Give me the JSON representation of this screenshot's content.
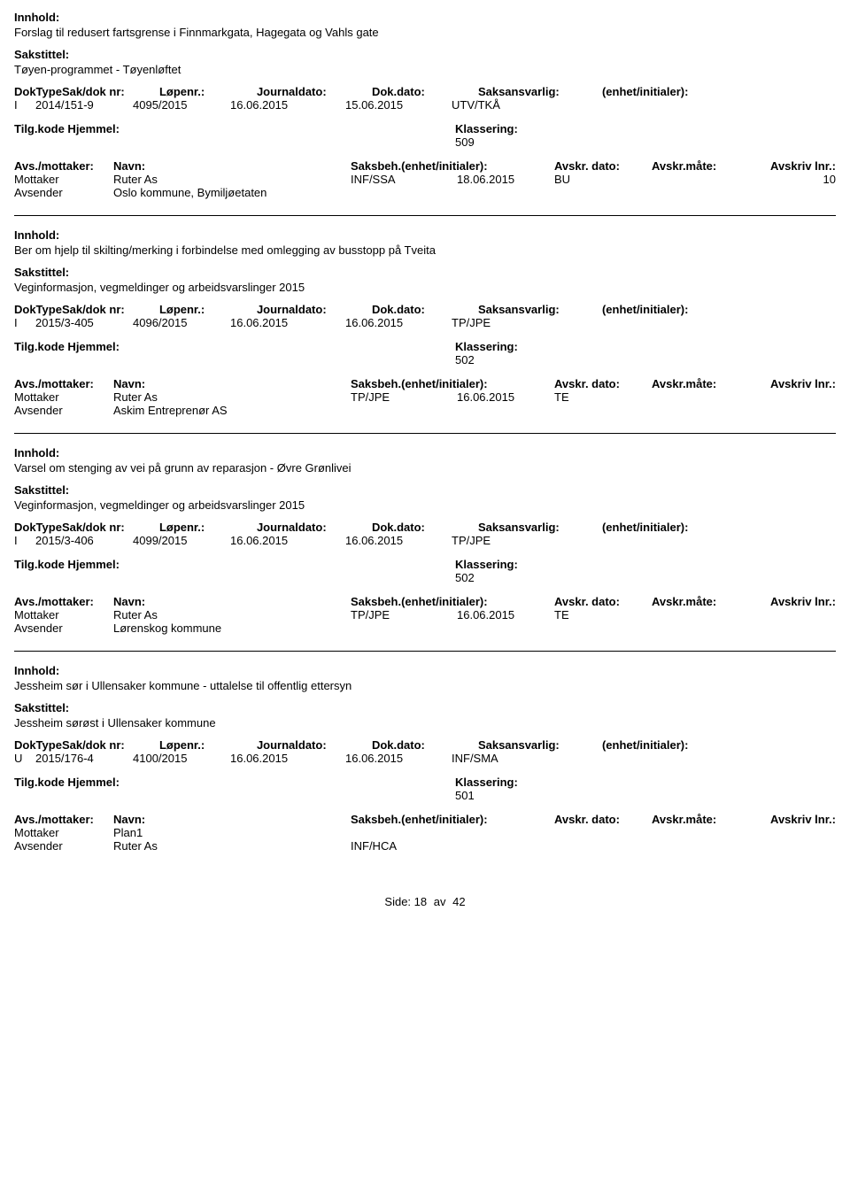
{
  "labels": {
    "innhold": "Innhold:",
    "sakstittel": "Sakstittel:",
    "doktype": "DokType",
    "sakdok": "Sak/dok nr:",
    "lopenr": "Løpenr.:",
    "journaldato": "Journaldato:",
    "dokdato": "Dok.dato:",
    "saksansvarlig": "Saksansvarlig:",
    "enhet_init": "(enhet/initialer):",
    "tilgkode": "Tilg.kode",
    "hjemmel": "Hjemmel:",
    "klassering": "Klassering:",
    "avs_mottaker": "Avs./mottaker:",
    "navn": "Navn:",
    "saksbeh": "Saksbeh.(enhet/initialer):",
    "avskr_dato": "Avskr. dato:",
    "avskr_mote": "Avskr.måte:",
    "avskriv_lnr": "Avskriv lnr.:",
    "mottaker": "Mottaker",
    "avsender": "Avsender",
    "side": "Side:",
    "av": "av"
  },
  "page": {
    "num": "18",
    "total": "42"
  },
  "entries": [
    {
      "innhold": "Forslag til redusert fartsgrense i Finnmarkgata, Hagegata og Vahls gate",
      "sakstittel": "Tøyen-programmet - Tøyenløftet",
      "doktype": "I",
      "sakdok": "2014/151-9",
      "lopenr": "4095/2015",
      "journaldato": "16.06.2015",
      "dokdato": "15.06.2015",
      "saksansvarlig": "UTV/TKÅ",
      "klassering": "509",
      "recipients": [
        {
          "role": "Mottaker",
          "navn": "Ruter As",
          "saksbeh": "INF/SSA",
          "avskr_dato": "18.06.2015",
          "avskr_mote": "BU",
          "avskr_lnr": "10"
        },
        {
          "role": "Avsender",
          "navn": "Oslo kommune, Bymiljøetaten",
          "saksbeh": "",
          "avskr_dato": "",
          "avskr_mote": "",
          "avskr_lnr": ""
        }
      ]
    },
    {
      "innhold": "Ber om hjelp til skilting/merking i forbindelse med omlegging av busstopp på Tveita",
      "sakstittel": "Veginformasjon, vegmeldinger og arbeidsvarslinger 2015",
      "doktype": "I",
      "sakdok": "2015/3-405",
      "lopenr": "4096/2015",
      "journaldato": "16.06.2015",
      "dokdato": "16.06.2015",
      "saksansvarlig": "TP/JPE",
      "klassering": "502",
      "recipients": [
        {
          "role": "Mottaker",
          "navn": "Ruter As",
          "saksbeh": "TP/JPE",
          "avskr_dato": "16.06.2015",
          "avskr_mote": "TE",
          "avskr_lnr": ""
        },
        {
          "role": "Avsender",
          "navn": "Askim Entreprenør AS",
          "saksbeh": "",
          "avskr_dato": "",
          "avskr_mote": "",
          "avskr_lnr": ""
        }
      ]
    },
    {
      "innhold": "Varsel om stenging av vei på grunn av reparasjon - Øvre Grønlivei",
      "sakstittel": "Veginformasjon, vegmeldinger og arbeidsvarslinger 2015",
      "doktype": "I",
      "sakdok": "2015/3-406",
      "lopenr": "4099/2015",
      "journaldato": "16.06.2015",
      "dokdato": "16.06.2015",
      "saksansvarlig": "TP/JPE",
      "klassering": "502",
      "recipients": [
        {
          "role": "Mottaker",
          "navn": "Ruter As",
          "saksbeh": "TP/JPE",
          "avskr_dato": "16.06.2015",
          "avskr_mote": "TE",
          "avskr_lnr": ""
        },
        {
          "role": "Avsender",
          "navn": "Lørenskog kommune",
          "saksbeh": "",
          "avskr_dato": "",
          "avskr_mote": "",
          "avskr_lnr": ""
        }
      ]
    },
    {
      "innhold": "Jessheim sør i Ullensaker kommune - uttalelse til offentlig ettersyn",
      "sakstittel": "Jessheim sørøst i Ullensaker kommune",
      "doktype": "U",
      "sakdok": "2015/176-4",
      "lopenr": "4100/2015",
      "journaldato": "16.06.2015",
      "dokdato": "16.06.2015",
      "saksansvarlig": "INF/SMA",
      "klassering": "501",
      "recipients": [
        {
          "role": "Mottaker",
          "navn": "Plan1",
          "saksbeh": "",
          "avskr_dato": "",
          "avskr_mote": "",
          "avskr_lnr": ""
        },
        {
          "role": "Avsender",
          "navn": "Ruter As",
          "saksbeh": "INF/HCA",
          "avskr_dato": "",
          "avskr_mote": "",
          "avskr_lnr": ""
        }
      ]
    }
  ]
}
